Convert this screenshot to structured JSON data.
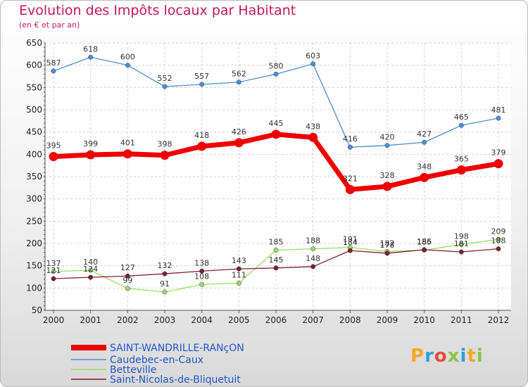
{
  "header": {
    "title": "Evolution des Impôts locaux par Habitant",
    "subtitle": "(en € et par an)"
  },
  "brand": {
    "text": "Proxiti",
    "colors": [
      "#f7a820",
      "#2f9fd8",
      "#e74c3c",
      "#8bc34a",
      "#2f9fd8",
      "#f7a820",
      "#8bc34a"
    ]
  },
  "chart_data": {
    "type": "line",
    "title": "Evolution des Impôts locaux par Habitant",
    "subtitle": "(en € et par an)",
    "xlabel": "",
    "ylabel": "",
    "x": [
      "2000",
      "2001",
      "2002",
      "2003",
      "2004",
      "2005",
      "2006",
      "2007",
      "2008",
      "2009",
      "2010",
      "2011",
      "2012"
    ],
    "ylim": [
      50,
      650
    ],
    "yticks": [
      50,
      100,
      150,
      200,
      250,
      300,
      350,
      400,
      450,
      500,
      550,
      600,
      650
    ],
    "grid": true,
    "legend_position": "bottom-left",
    "series": [
      {
        "name": "Caudebec-en-Caux",
        "color": "#4a90d0",
        "bold": false,
        "values": [
          587,
          618,
          600,
          552,
          557,
          562,
          580,
          603,
          416,
          420,
          427,
          465,
          481
        ],
        "labels": [
          "587",
          "618",
          "600",
          "552",
          "557",
          "562",
          "580",
          "603",
          "416",
          "420",
          "427",
          "465",
          "481"
        ]
      },
      {
        "name": "Betteville",
        "color": "#99dd66",
        "bold": false,
        "values": [
          137,
          140,
          99,
          91,
          108,
          111,
          185,
          188,
          191,
          182,
          185,
          198,
          209
        ],
        "labels": [
          "137",
          "140",
          "99",
          "91",
          "108",
          "111",
          "185",
          "188",
          "191",
          "182",
          "185",
          "198",
          "209"
        ]
      },
      {
        "name": "Saint-Nicolas-de-Bliquetuit",
        "color": "#7a2030",
        "bold": false,
        "values": [
          121,
          124,
          127,
          132,
          138,
          143,
          145,
          148,
          184,
          178,
          186,
          181,
          188
        ],
        "labels": [
          "121",
          "124",
          "127",
          "132",
          "138",
          "143",
          "145",
          "148",
          "184",
          "178",
          "186",
          "181",
          "188"
        ]
      },
      {
        "name": "SAINT-WANDRILLE-RANçON",
        "color": "#ee0000",
        "bold": true,
        "values": [
          395,
          399,
          401,
          398,
          418,
          426,
          445,
          438,
          321,
          328,
          348,
          365,
          379
        ],
        "labels": [
          "395",
          "399",
          "401",
          "398",
          "418",
          "426",
          "445",
          "438",
          "321",
          "328",
          "348",
          "365",
          "379"
        ]
      }
    ],
    "legend_order": [
      "SAINT-WANDRILLE-RANçON",
      "Caudebec-en-Caux",
      "Betteville",
      "Saint-Nicolas-de-Bliquetuit"
    ]
  }
}
